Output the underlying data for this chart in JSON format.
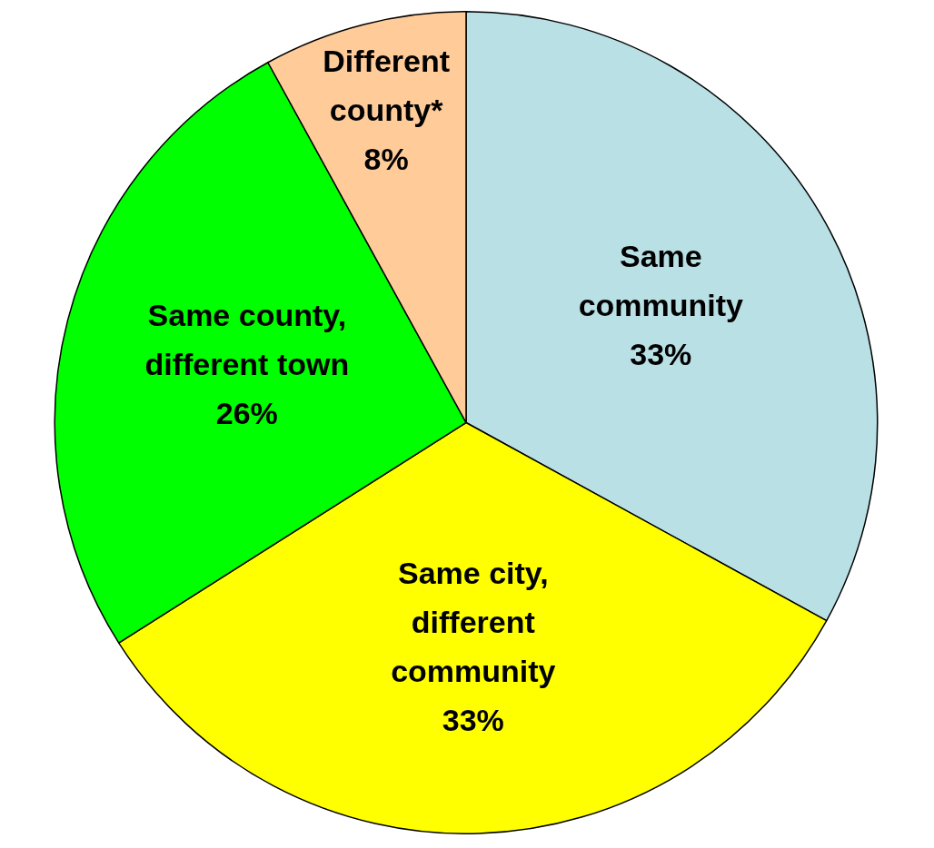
{
  "chart_data": {
    "type": "pie",
    "categories": [
      "Same community",
      "Same city, different community",
      "Same county, different town",
      "Different county*"
    ],
    "values": [
      33,
      33,
      26,
      8
    ],
    "colors": [
      "#b9e0e4",
      "#ffff00",
      "#00ff00",
      "#ffcc99"
    ],
    "value_labels": [
      "33%",
      "33%",
      "26%",
      "8%"
    ],
    "legend": false
  }
}
